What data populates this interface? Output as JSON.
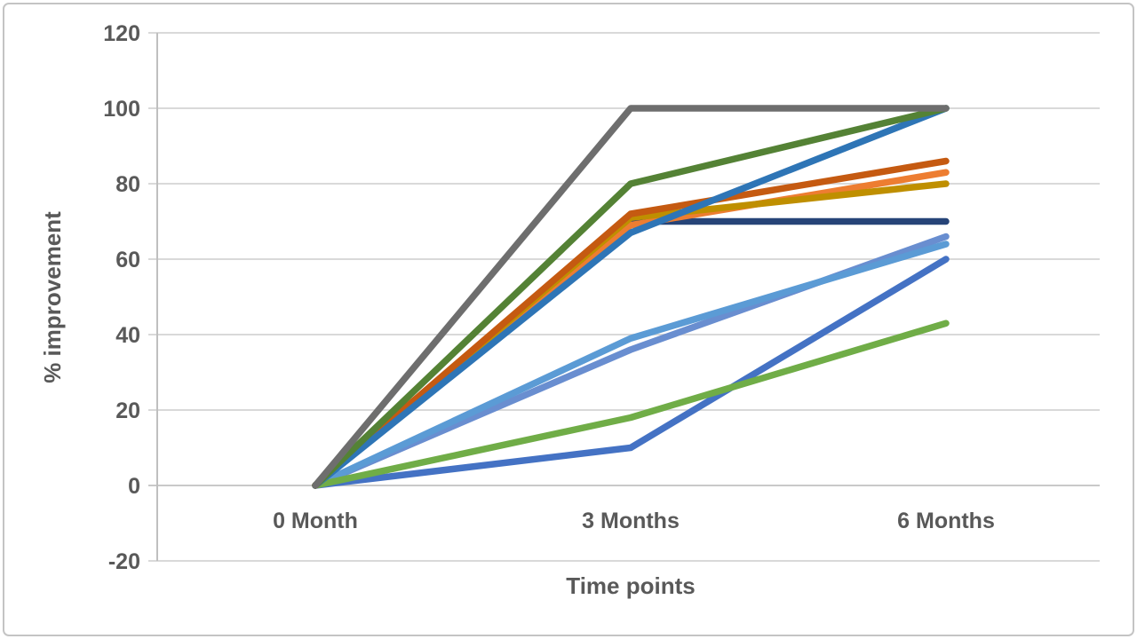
{
  "chart_data": {
    "type": "line",
    "title": "",
    "xlabel": "Time points",
    "ylabel": "% improvement",
    "categories": [
      "0 Month",
      "3 Months",
      "6 Months"
    ],
    "ylim": [
      -20,
      120
    ],
    "yticks": [
      120,
      100,
      80,
      60,
      40,
      20,
      0,
      -20
    ],
    "grid": true,
    "legend_position": "none",
    "marker": "none",
    "series": [
      {
        "name": "periwinkle-blue",
        "color": "#698ED0",
        "values": [
          0,
          36,
          66
        ]
      },
      {
        "name": "royal-blue",
        "color": "#4472C4",
        "values": [
          0,
          10,
          60
        ]
      },
      {
        "name": "sky-blue",
        "color": "#5B9BD5",
        "values": [
          0,
          39,
          64
        ]
      },
      {
        "name": "green",
        "color": "#70AD47",
        "values": [
          0,
          18,
          43
        ]
      },
      {
        "name": "navy",
        "color": "#264478",
        "values": [
          0,
          70,
          70
        ]
      },
      {
        "name": "orange",
        "color": "#ED7D31",
        "values": [
          0,
          69,
          83
        ]
      },
      {
        "name": "olive-gold",
        "color": "#BF8F00",
        "values": [
          0,
          71,
          80
        ]
      },
      {
        "name": "rust",
        "color": "#C55A11",
        "values": [
          0,
          72,
          86
        ]
      },
      {
        "name": "steel-blue",
        "color": "#2E75B6",
        "values": [
          0,
          67,
          100
        ]
      },
      {
        "name": "dark-green",
        "color": "#548235",
        "values": [
          0,
          80,
          100
        ]
      },
      {
        "name": "gray",
        "color": "#6E6E6E",
        "values": [
          0,
          100,
          100
        ]
      }
    ],
    "axis_color": "#BFBFBF",
    "gridline_color": "#D9D9D9",
    "zero_line_color": "#C9C9C9",
    "text_color": "#595959",
    "frame_color": "#C4C4C4"
  }
}
